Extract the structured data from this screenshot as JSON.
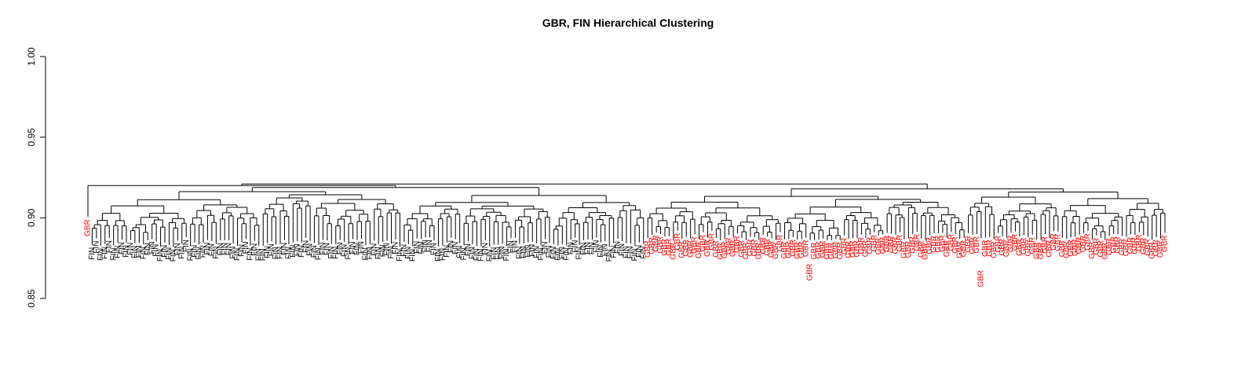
{
  "chart_data": {
    "type": "dendrogram",
    "title": "GBR, FIN Hierarchical Clustering",
    "xlabel": "",
    "ylabel": "",
    "ylim": [
      0.85,
      1.0
    ],
    "yticks": [
      0.85,
      0.9,
      0.95,
      1.0
    ],
    "ytick_labels": [
      "0.85",
      "0.90",
      "0.95",
      "1.00"
    ],
    "groups": [
      {
        "name": "FIN",
        "color": "#000000",
        "count": 130
      },
      {
        "name": "GBR",
        "color": "#ff0000",
        "count": 123
      }
    ],
    "group_order": [
      "GBR",
      "FIN",
      "GBR"
    ],
    "group_order_counts": [
      1,
      130,
      122
    ],
    "root_height": 0.921,
    "fin_cluster_height": 0.92,
    "gbr_cluster_height": 0.918,
    "leaf_height_range": [
      0.882,
      0.902
    ],
    "notable_outliers": [
      {
        "label": "GBR",
        "height": 0.873
      },
      {
        "label": "GBR",
        "height": 0.869
      }
    ]
  }
}
